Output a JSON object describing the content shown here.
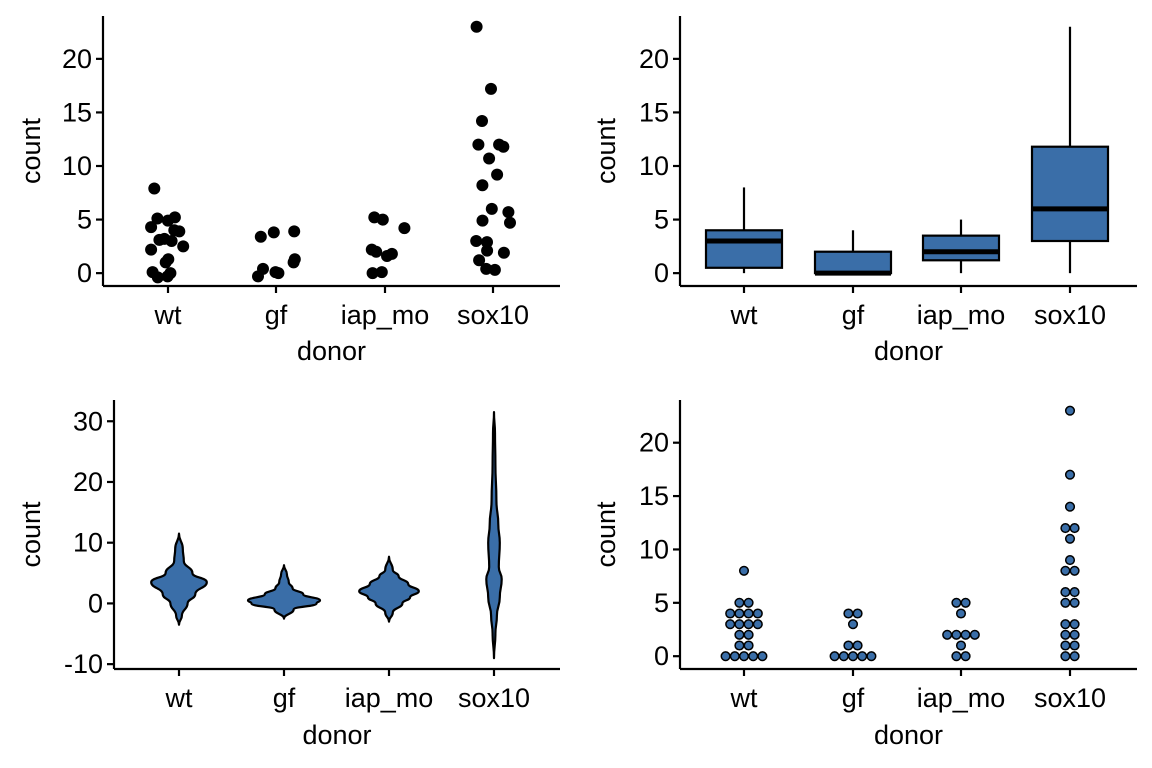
{
  "colors": {
    "fill": "#3A6EA8",
    "ink": "#000000",
    "background": "#FFFFFF"
  },
  "chart_data": [
    {
      "type": "scatter",
      "variant": "jitter",
      "xlabel": "donor",
      "ylabel": "count",
      "categories": [
        "wt",
        "gf",
        "iap_mo",
        "sox10"
      ],
      "ylim": [
        -1.2,
        24
      ],
      "yticks": [
        0,
        5,
        10,
        15,
        20
      ],
      "ytick_labels": [
        "0",
        "5",
        "10",
        "15",
        "20"
      ],
      "grid": false,
      "points": [
        {
          "x": "wt",
          "y": -0.3
        },
        {
          "x": "wt",
          "y": 0.0
        },
        {
          "x": "wt",
          "y": 0.1
        },
        {
          "x": "wt",
          "y": -0.4
        },
        {
          "x": "wt",
          "y": 1.0
        },
        {
          "x": "wt",
          "y": 1.3
        },
        {
          "x": "wt",
          "y": 2.2
        },
        {
          "x": "wt",
          "y": 2.5
        },
        {
          "x": "wt",
          "y": 3.0
        },
        {
          "x": "wt",
          "y": 3.2
        },
        {
          "x": "wt",
          "y": 3.1
        },
        {
          "x": "wt",
          "y": 3.9
        },
        {
          "x": "wt",
          "y": 4.0
        },
        {
          "x": "wt",
          "y": 4.3
        },
        {
          "x": "wt",
          "y": 4.9
        },
        {
          "x": "wt",
          "y": 5.1
        },
        {
          "x": "wt",
          "y": 5.2
        },
        {
          "x": "wt",
          "y": 7.9
        },
        {
          "x": "gf",
          "y": 0.0
        },
        {
          "x": "gf",
          "y": 0.1
        },
        {
          "x": "gf",
          "y": 0.4
        },
        {
          "x": "gf",
          "y": -0.3
        },
        {
          "x": "gf",
          "y": 1.0
        },
        {
          "x": "gf",
          "y": 1.3
        },
        {
          "x": "gf",
          "y": 3.4
        },
        {
          "x": "gf",
          "y": 3.8
        },
        {
          "x": "gf",
          "y": 3.9
        },
        {
          "x": "iap_mo",
          "y": 0.0
        },
        {
          "x": "iap_mo",
          "y": 0.1
        },
        {
          "x": "iap_mo",
          "y": 1.6
        },
        {
          "x": "iap_mo",
          "y": 1.8
        },
        {
          "x": "iap_mo",
          "y": 2.0
        },
        {
          "x": "iap_mo",
          "y": 2.2
        },
        {
          "x": "iap_mo",
          "y": 4.2
        },
        {
          "x": "iap_mo",
          "y": 5.0
        },
        {
          "x": "iap_mo",
          "y": 5.2
        },
        {
          "x": "sox10",
          "y": 0.3
        },
        {
          "x": "sox10",
          "y": 0.4
        },
        {
          "x": "sox10",
          "y": 1.2
        },
        {
          "x": "sox10",
          "y": 1.9
        },
        {
          "x": "sox10",
          "y": 2.1
        },
        {
          "x": "sox10",
          "y": 2.9
        },
        {
          "x": "sox10",
          "y": 3.0
        },
        {
          "x": "sox10",
          "y": 4.7
        },
        {
          "x": "sox10",
          "y": 4.9
        },
        {
          "x": "sox10",
          "y": 5.7
        },
        {
          "x": "sox10",
          "y": 6.0
        },
        {
          "x": "sox10",
          "y": 8.2
        },
        {
          "x": "sox10",
          "y": 9.2
        },
        {
          "x": "sox10",
          "y": 10.7
        },
        {
          "x": "sox10",
          "y": 11.8
        },
        {
          "x": "sox10",
          "y": 12.0
        },
        {
          "x": "sox10",
          "y": 12.0
        },
        {
          "x": "sox10",
          "y": 14.2
        },
        {
          "x": "sox10",
          "y": 17.2
        },
        {
          "x": "sox10",
          "y": 23.0
        }
      ]
    },
    {
      "type": "box",
      "xlabel": "donor",
      "ylabel": "count",
      "categories": [
        "wt",
        "gf",
        "iap_mo",
        "sox10"
      ],
      "ylim": [
        -1.2,
        24
      ],
      "yticks": [
        0,
        5,
        10,
        15,
        20
      ],
      "ytick_labels": [
        "0",
        "5",
        "10",
        "15",
        "20"
      ],
      "grid": false,
      "boxes": [
        {
          "category": "wt",
          "min": 0,
          "q1": 0.5,
          "median": 3.0,
          "q3": 4.0,
          "max": 8.0
        },
        {
          "category": "gf",
          "min": 0,
          "q1": 0,
          "median": 0,
          "q3": 2.0,
          "max": 4.0
        },
        {
          "category": "iap_mo",
          "min": 0,
          "q1": 1.2,
          "median": 2.0,
          "q3": 3.5,
          "max": 5.0
        },
        {
          "category": "sox10",
          "min": 0,
          "q1": 3.0,
          "median": 6.0,
          "q3": 11.8,
          "max": 23.0
        }
      ]
    },
    {
      "type": "violin",
      "xlabel": "donor",
      "ylabel": "count",
      "categories": [
        "wt",
        "gf",
        "iap_mo",
        "sox10"
      ],
      "ylim": [
        -10.8,
        33.5
      ],
      "yticks": [
        -10,
        0,
        10,
        20,
        30
      ],
      "ytick_labels": [
        "-10",
        "0",
        "10",
        "20",
        "30"
      ],
      "grid": false,
      "violins": [
        {
          "category": "wt",
          "profile": [
            [
              -3.5,
              0
            ],
            [
              -2,
              0.06
            ],
            [
              0,
              0.18
            ],
            [
              1.5,
              0.34
            ],
            [
              3.5,
              0.58
            ],
            [
              5,
              0.28
            ],
            [
              7,
              0.1
            ],
            [
              9,
              0.08
            ],
            [
              11.5,
              0
            ]
          ]
        },
        {
          "category": "gf",
          "profile": [
            [
              -2.5,
              0
            ],
            [
              -1,
              0.2
            ],
            [
              0,
              0.68
            ],
            [
              0.5,
              0.75
            ],
            [
              1.5,
              0.4
            ],
            [
              2.5,
              0.18
            ],
            [
              3.5,
              0.1
            ],
            [
              4.8,
              0.06
            ],
            [
              6.3,
              0
            ]
          ]
        },
        {
          "category": "iap_mo",
          "profile": [
            [
              -3,
              0
            ],
            [
              -1.5,
              0.08
            ],
            [
              0,
              0.28
            ],
            [
              1,
              0.44
            ],
            [
              2,
              0.62
            ],
            [
              3.2,
              0.4
            ],
            [
              4.5,
              0.2
            ],
            [
              5.5,
              0.08
            ],
            [
              7.7,
              0
            ]
          ]
        },
        {
          "category": "sox10",
          "profile": [
            [
              -9,
              0
            ],
            [
              -5,
              0.03
            ],
            [
              -2,
              0.06
            ],
            [
              1,
              0.12
            ],
            [
              4,
              0.16
            ],
            [
              6,
              0.1
            ],
            [
              10,
              0.12
            ],
            [
              13,
              0.09
            ],
            [
              17,
              0.05
            ],
            [
              23,
              0.03
            ],
            [
              28,
              0.02
            ],
            [
              31.5,
              0
            ]
          ]
        }
      ]
    },
    {
      "type": "dotplot",
      "xlabel": "donor",
      "ylabel": "count",
      "categories": [
        "wt",
        "gf",
        "iap_mo",
        "sox10"
      ],
      "ylim": [
        -1.2,
        24
      ],
      "yticks": [
        0,
        5,
        10,
        15,
        20
      ],
      "ytick_labels": [
        "0",
        "5",
        "10",
        "15",
        "20"
      ],
      "grid": false,
      "counts": [
        {
          "category": "wt",
          "values": [
            [
              0,
              5
            ],
            [
              1,
              2
            ],
            [
              2,
              2
            ],
            [
              3,
              4
            ],
            [
              4,
              4
            ],
            [
              5,
              2
            ],
            [
              8,
              1
            ]
          ]
        },
        {
          "category": "gf",
          "values": [
            [
              0,
              5
            ],
            [
              1,
              2
            ],
            [
              3,
              1
            ],
            [
              4,
              2
            ]
          ]
        },
        {
          "category": "iap_mo",
          "values": [
            [
              0,
              2
            ],
            [
              1,
              1
            ],
            [
              2,
              4
            ],
            [
              4,
              1
            ],
            [
              5,
              2
            ]
          ]
        },
        {
          "category": "sox10",
          "values": [
            [
              0,
              2
            ],
            [
              1,
              2
            ],
            [
              2,
              2
            ],
            [
              3,
              2
            ],
            [
              5,
              2
            ],
            [
              6,
              2
            ],
            [
              8,
              2
            ],
            [
              9,
              1
            ],
            [
              11,
              1
            ],
            [
              12,
              2
            ],
            [
              14,
              1
            ],
            [
              17,
              1
            ],
            [
              23,
              1
            ]
          ]
        }
      ]
    }
  ]
}
